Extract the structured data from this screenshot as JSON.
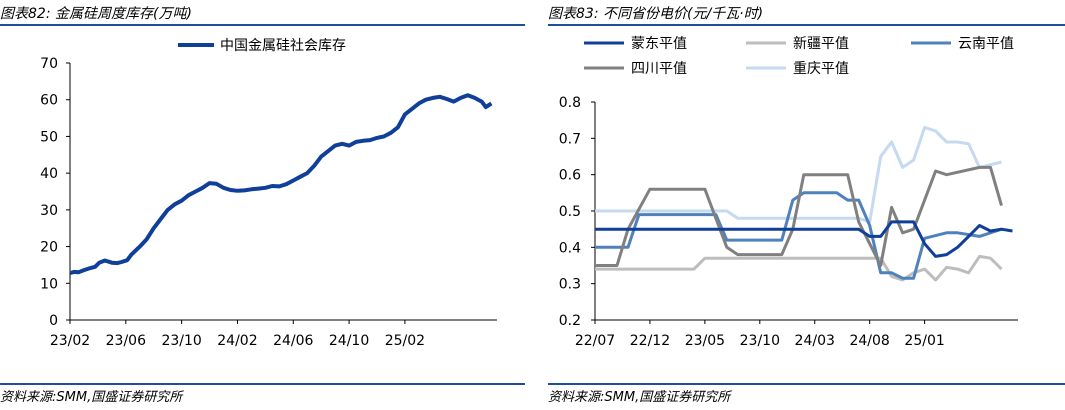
{
  "charts": [
    {
      "title": "图表82:  金属硅周度库存(万吨)",
      "source": "资料来源:SMM,国盛证券研究所"
    },
    {
      "title": "图表83:  不同省份电价(元/千瓦·时)",
      "source": "资料来源:SMM,国盛证券研究所"
    }
  ],
  "colors": {
    "rule": "#1e4e9c"
  },
  "chart_data": [
    {
      "type": "line",
      "title": "图表82:  金属硅周度库存(万吨)",
      "x_tick_labels": [
        "23/02",
        "23/06",
        "23/10",
        "24/02",
        "24/06",
        "24/10",
        "25/02"
      ],
      "y_tick_labels": [
        "0",
        "10",
        "20",
        "30",
        "40",
        "50",
        "60",
        "70"
      ],
      "ylim": [
        0,
        70
      ],
      "grid": false,
      "legend": "top-center",
      "series": [
        {
          "name": "中国金属硅社会库存",
          "color": "#0f3f99",
          "x_unit": "months since 23/02",
          "points": [
            [
              0,
              12.8
            ],
            [
              0.3,
              13.1
            ],
            [
              0.6,
              13.0
            ],
            [
              1.0,
              13.6
            ],
            [
              1.5,
              14.2
            ],
            [
              1.8,
              14.5
            ],
            [
              2.1,
              15.6
            ],
            [
              2.5,
              16.2
            ],
            [
              3.0,
              15.6
            ],
            [
              3.4,
              15.5
            ],
            [
              3.7,
              15.8
            ],
            [
              4.1,
              16.3
            ],
            [
              4.4,
              17.8
            ],
            [
              5.0,
              20.0
            ],
            [
              5.5,
              22.0
            ],
            [
              6.0,
              25.0
            ],
            [
              6.5,
              27.5
            ],
            [
              7.0,
              30.0
            ],
            [
              7.5,
              31.5
            ],
            [
              8.0,
              32.5
            ],
            [
              8.5,
              34.0
            ],
            [
              9.0,
              35.0
            ],
            [
              9.5,
              36.0
            ],
            [
              10.0,
              37.3
            ],
            [
              10.5,
              37.1
            ],
            [
              11.0,
              36.0
            ],
            [
              11.5,
              35.4
            ],
            [
              12.0,
              35.2
            ],
            [
              12.5,
              35.3
            ],
            [
              13.0,
              35.6
            ],
            [
              13.5,
              35.8
            ],
            [
              14.0,
              36.0
            ],
            [
              14.5,
              36.5
            ],
            [
              15.0,
              36.4
            ],
            [
              15.5,
              37.0
            ],
            [
              16.0,
              38.0
            ],
            [
              16.5,
              39.0
            ],
            [
              17.0,
              40.0
            ],
            [
              17.5,
              42.0
            ],
            [
              18.0,
              44.5
            ],
            [
              18.5,
              46.0
            ],
            [
              19.0,
              47.5
            ],
            [
              19.5,
              48.0
            ],
            [
              20.0,
              47.5
            ],
            [
              20.5,
              48.5
            ],
            [
              21.0,
              48.8
            ],
            [
              21.5,
              49.0
            ],
            [
              22.0,
              49.6
            ],
            [
              22.5,
              50.0
            ],
            [
              23.0,
              51.0
            ],
            [
              23.5,
              52.5
            ],
            [
              24.0,
              56.0
            ],
            [
              24.5,
              57.5
            ],
            [
              25.0,
              59.0
            ],
            [
              25.5,
              60.0
            ],
            [
              26.0,
              60.5
            ],
            [
              26.5,
              60.8
            ],
            [
              27.0,
              60.2
            ],
            [
              27.5,
              59.5
            ],
            [
              28.0,
              60.5
            ],
            [
              28.5,
              61.2
            ],
            [
              29.0,
              60.5
            ],
            [
              29.5,
              59.5
            ],
            [
              29.8,
              58.0
            ],
            [
              30.2,
              59.0
            ]
          ]
        }
      ]
    },
    {
      "type": "line",
      "title": "图表83:  不同省份电价(元/千瓦·时)",
      "x_tick_labels": [
        "22/07",
        "22/12",
        "23/05",
        "23/10",
        "24/03",
        "24/08",
        "25/01"
      ],
      "y_tick_labels": [
        "0.2",
        "0.3",
        "0.4",
        "0.5",
        "0.6",
        "0.7",
        "0.8"
      ],
      "ylim": [
        0.2,
        0.8
      ],
      "grid": false,
      "legend": "top",
      "series": [
        {
          "name": "蒙东平值",
          "color": "#0f3f99",
          "x_unit": "months since 22/07",
          "points": [
            [
              0,
              0.45
            ],
            [
              20,
              0.45
            ],
            [
              24,
              0.45
            ],
            [
              25,
              0.43
            ],
            [
              26,
              0.43
            ],
            [
              27,
              0.47
            ],
            [
              28,
              0.47
            ],
            [
              29,
              0.47
            ],
            [
              30,
              0.41
            ],
            [
              31,
              0.375
            ],
            [
              32,
              0.38
            ],
            [
              33,
              0.4
            ],
            [
              34,
              0.43
            ],
            [
              35,
              0.46
            ],
            [
              36,
              0.445
            ],
            [
              37,
              0.45
            ],
            [
              38,
              0.445
            ]
          ]
        },
        {
          "name": "新疆平值",
          "color": "#bdbdbd",
          "x_unit": "months since 22/07",
          "points": [
            [
              0,
              0.34
            ],
            [
              9,
              0.34
            ],
            [
              10,
              0.37
            ],
            [
              25,
              0.37
            ],
            [
              26,
              0.37
            ],
            [
              27,
              0.32
            ],
            [
              28,
              0.31
            ],
            [
              29,
              0.33
            ],
            [
              30,
              0.34
            ],
            [
              31,
              0.31
            ],
            [
              32,
              0.345
            ],
            [
              33,
              0.34
            ],
            [
              34,
              0.33
            ],
            [
              35,
              0.375
            ],
            [
              36,
              0.37
            ],
            [
              37,
              0.34
            ]
          ]
        },
        {
          "name": "云南平值",
          "color": "#4f81bd",
          "x_unit": "months since 22/07",
          "points": [
            [
              0,
              0.4
            ],
            [
              3,
              0.4
            ],
            [
              4,
              0.49
            ],
            [
              11,
              0.49
            ],
            [
              12,
              0.42
            ],
            [
              17,
              0.42
            ],
            [
              18,
              0.53
            ],
            [
              19,
              0.55
            ],
            [
              22,
              0.55
            ],
            [
              23,
              0.53
            ],
            [
              24,
              0.53
            ],
            [
              25,
              0.46
            ],
            [
              26,
              0.33
            ],
            [
              27,
              0.33
            ],
            [
              28,
              0.315
            ],
            [
              29,
              0.315
            ],
            [
              30,
              0.425
            ],
            [
              32,
              0.44
            ],
            [
              33,
              0.44
            ],
            [
              35,
              0.43
            ],
            [
              37,
              0.45
            ]
          ]
        },
        {
          "name": "四川平值",
          "color": "#808080",
          "x_unit": "months since 22/07",
          "points": [
            [
              0,
              0.35
            ],
            [
              2,
              0.35
            ],
            [
              3,
              0.45
            ],
            [
              5,
              0.56
            ],
            [
              10,
              0.56
            ],
            [
              12,
              0.4
            ],
            [
              13,
              0.38
            ],
            [
              17,
              0.38
            ],
            [
              18,
              0.45
            ],
            [
              19,
              0.6
            ],
            [
              23,
              0.6
            ],
            [
              24,
              0.47
            ],
            [
              26,
              0.35
            ],
            [
              27,
              0.51
            ],
            [
              28,
              0.44
            ],
            [
              29,
              0.45
            ],
            [
              31,
              0.61
            ],
            [
              32,
              0.6
            ],
            [
              35,
              0.62
            ],
            [
              36,
              0.62
            ],
            [
              37,
              0.515
            ]
          ]
        },
        {
          "name": "重庆平值",
          "color": "#c5d9f1",
          "x_unit": "months since 22/07",
          "points": [
            [
              0,
              0.5
            ],
            [
              12,
              0.5
            ],
            [
              13,
              0.48
            ],
            [
              17,
              0.48
            ],
            [
              18,
              0.48
            ],
            [
              24,
              0.48
            ],
            [
              25,
              0.47
            ],
            [
              26,
              0.65
            ],
            [
              27,
              0.69
            ],
            [
              28,
              0.62
            ],
            [
              29,
              0.64
            ],
            [
              30,
              0.73
            ],
            [
              31,
              0.72
            ],
            [
              32,
              0.69
            ],
            [
              33,
              0.69
            ],
            [
              34,
              0.685
            ],
            [
              35,
              0.62
            ],
            [
              37,
              0.635
            ]
          ]
        }
      ]
    }
  ]
}
